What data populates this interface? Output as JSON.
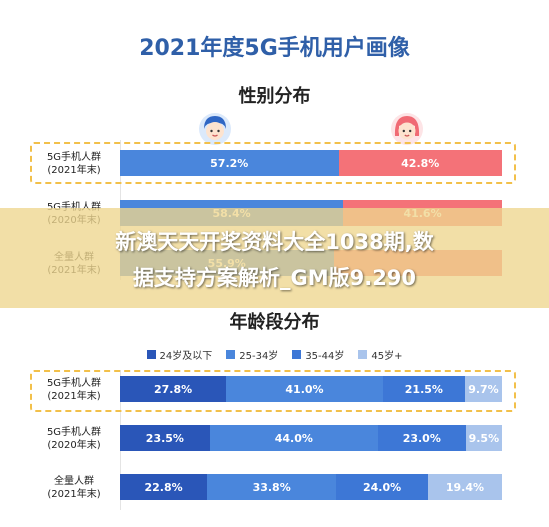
{
  "title": "2021年度5G手机用户画像",
  "gender_section": {
    "title": "性别分布",
    "icons": [
      "male-avatar-icon",
      "female-avatar-icon"
    ]
  },
  "age_section": {
    "title": "年龄段分布"
  },
  "overlay": {
    "line1": "新澳天天开奖资料大全1038期,数",
    "line2": "据支持方案解析_GM版9.290"
  },
  "colors": {
    "title": "#2f5fa8",
    "male": "#4a86dc",
    "female": "#f47278",
    "age_24_below": "#2a56b8",
    "age_25_34": "#4a86dc",
    "age_35_44": "#3d77d6",
    "age_45_plus": "#a9c4ec",
    "highlight_border": "#f2c04a"
  },
  "chart_data": [
    {
      "type": "bar",
      "title": "性别分布",
      "categories": [
        [
          "5G手机人群",
          "(2021年末)"
        ],
        [
          "5G手机人群",
          "(2020年末)"
        ],
        [
          "全量人群",
          "(2021年末)"
        ]
      ],
      "series": [
        {
          "values": [
            57.2,
            58.4,
            55.9
          ],
          "labels": [
            "57.2%",
            "58.4%",
            "55.9%"
          ]
        },
        {
          "values": [
            42.8,
            41.6,
            44.1
          ],
          "labels": [
            "42.8%",
            "41.6%",
            ""
          ]
        }
      ],
      "stacked": true,
      "orientation": "horizontal"
    },
    {
      "type": "bar",
      "title": "年龄段分布",
      "categories": [
        [
          "5G手机人群",
          "(2021年末)"
        ],
        [
          "5G手机人群",
          "(2020年末)"
        ],
        [
          "全量人群",
          "(2021年末)"
        ]
      ],
      "series": [
        {
          "name": "24岁及以下",
          "values": [
            27.8,
            23.5,
            22.8
          ],
          "labels": [
            "27.8%",
            "23.5%",
            "22.8%"
          ]
        },
        {
          "name": "25-34岁",
          "values": [
            41.0,
            44.0,
            33.8
          ],
          "labels": [
            "41.0%",
            "44.0%",
            "33.8%"
          ]
        },
        {
          "name": "35-44岁",
          "values": [
            21.5,
            23.0,
            24.0
          ],
          "labels": [
            "21.5%",
            "23.0%",
            "24.0%"
          ]
        },
        {
          "name": "45岁+",
          "values": [
            9.7,
            9.5,
            19.4
          ],
          "labels": [
            "9.7%",
            "9.5%",
            "19.4%"
          ]
        }
      ],
      "stacked": true,
      "orientation": "horizontal",
      "legend": "top"
    }
  ]
}
